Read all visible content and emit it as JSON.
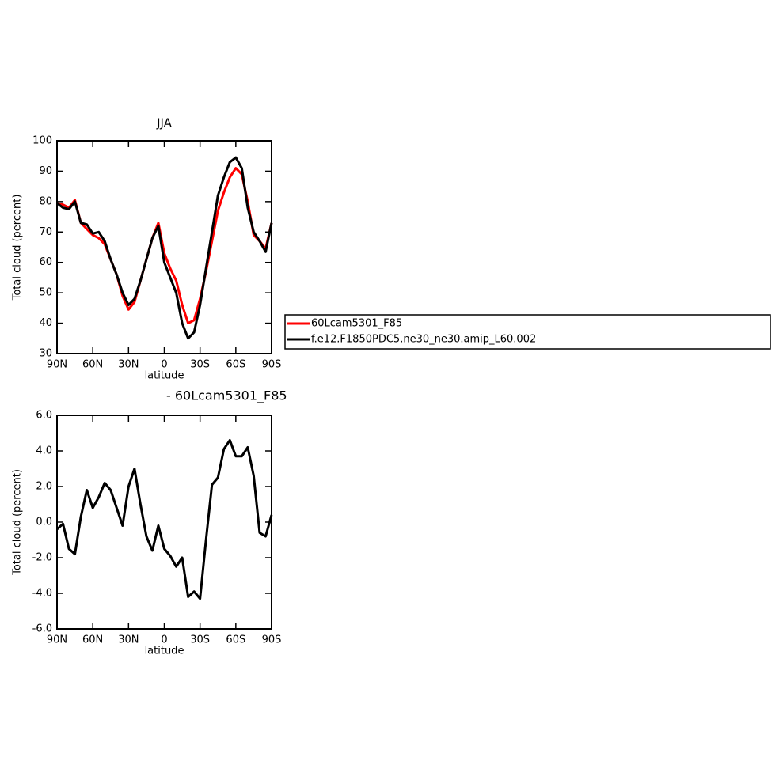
{
  "chart_data": [
    {
      "type": "line",
      "title": "JJA",
      "x_label": "latitude",
      "y_label": "Total cloud (percent)",
      "x": [
        90,
        85,
        80,
        75,
        70,
        65,
        60,
        55,
        50,
        45,
        40,
        35,
        30,
        25,
        20,
        15,
        10,
        5,
        0,
        -5,
        -10,
        -15,
        -20,
        -25,
        -30,
        -35,
        -40,
        -45,
        -50,
        -55,
        -60,
        -65,
        -70,
        -75,
        -80,
        -85,
        -90
      ],
      "series": [
        {
          "name": "60Lcam5301_F85",
          "color": "#ff0000",
          "values": [
            79.5,
            79,
            78,
            80.5,
            73,
            71,
            69,
            68,
            66,
            61,
            56,
            49,
            44.5,
            47,
            54,
            61,
            68,
            73,
            63,
            58,
            54,
            46,
            40,
            41,
            48,
            57,
            67,
            77,
            83,
            88,
            91,
            89,
            80,
            69,
            67,
            64.5,
            73
          ]
        },
        {
          "name": "f.e12.F1850PDC5.ne30_ne30.amip_L60.002",
          "color": "#000000",
          "values": [
            79.5,
            78,
            77.5,
            80,
            73,
            72.5,
            69.5,
            70,
            67,
            61,
            56,
            50,
            46,
            48,
            54,
            61,
            68,
            72,
            60,
            55,
            50,
            40,
            35,
            37,
            46,
            58,
            70,
            82,
            88,
            93,
            94.5,
            91,
            78,
            70,
            67,
            63.5,
            73
          ]
        }
      ],
      "xlim": [
        90,
        -90
      ],
      "xticks": [
        {
          "value": 90,
          "label": "90N"
        },
        {
          "value": 60,
          "label": "60N"
        },
        {
          "value": 30,
          "label": "30N"
        },
        0,
        {
          "value": -30,
          "label": "30S"
        },
        {
          "value": -60,
          "label": "60S"
        },
        {
          "value": -90,
          "label": "90S"
        }
      ],
      "ylim": [
        30,
        100
      ],
      "yticks": [
        30,
        40,
        50,
        60,
        70,
        80,
        90,
        100
      ]
    },
    {
      "type": "line",
      "title": "- 60Lcam5301_F85",
      "x_label": "latitude",
      "y_label": "Total cloud (percent)",
      "x": [
        90,
        85,
        80,
        75,
        70,
        65,
        60,
        55,
        50,
        45,
        40,
        35,
        30,
        25,
        20,
        15,
        10,
        5,
        0,
        -5,
        -10,
        -15,
        -20,
        -25,
        -30,
        -35,
        -40,
        -45,
        -50,
        -55,
        -60,
        -65,
        -70,
        -75,
        -80,
        -85,
        -90
      ],
      "series": [
        {
          "color": "#000000",
          "values": [
            -0.4,
            -0.1,
            -1.5,
            -1.8,
            0.3,
            1.8,
            0.8,
            1.4,
            2.2,
            1.8,
            0.8,
            -0.2,
            2.0,
            3.0,
            1.0,
            -0.8,
            -1.6,
            -0.2,
            -1.5,
            -1.9,
            -2.5,
            -2.0,
            -4.2,
            -3.9,
            -4.3,
            -1.0,
            2.1,
            2.5,
            4.1,
            4.6,
            3.7,
            3.7,
            4.2,
            2.6,
            -0.6,
            -0.8,
            0.4
          ]
        }
      ],
      "xlim": [
        90,
        -90
      ],
      "xticks": [
        {
          "value": 90,
          "label": "90N"
        },
        {
          "value": 60,
          "label": "60N"
        },
        {
          "value": 30,
          "label": "30N"
        },
        0,
        {
          "value": -30,
          "label": "30S"
        },
        {
          "value": -60,
          "label": "60S"
        },
        {
          "value": -90,
          "label": "90S"
        }
      ],
      "ylim": [
        -6,
        6
      ],
      "yticks": [
        {
          "value": -6,
          "label": "-6.0"
        },
        {
          "value": -4,
          "label": "-4.0"
        },
        {
          "value": -2,
          "label": "-2.0"
        },
        {
          "value": 0,
          "label": "0.0"
        },
        {
          "value": 2,
          "label": "2.0"
        },
        {
          "value": 4,
          "label": "4.0"
        },
        {
          "value": 6,
          "label": "6.0"
        }
      ]
    }
  ]
}
